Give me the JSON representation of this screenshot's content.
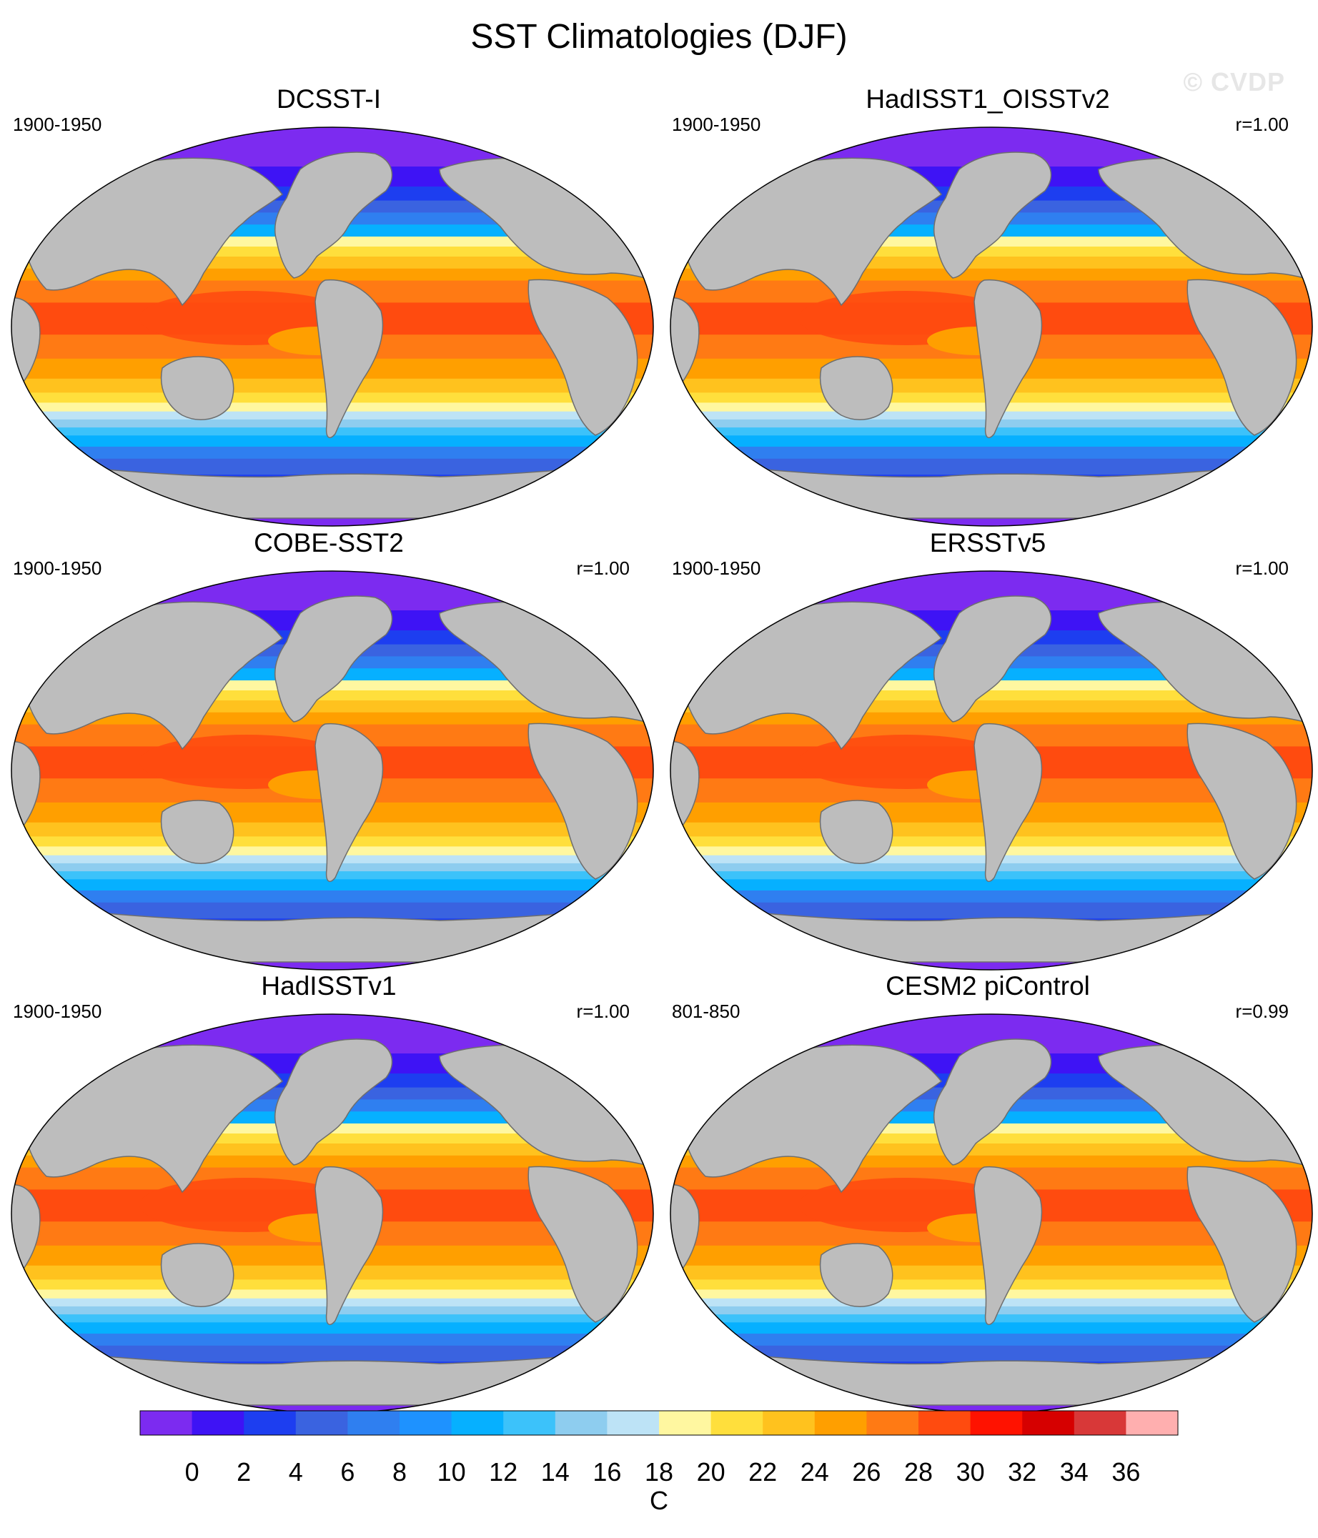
{
  "figure": {
    "title": "SST Climatologies (DJF)",
    "watermark": "© CVDP"
  },
  "colors": {
    "land": "#bdbdbd",
    "coast": "#6e6e6e",
    "missing": "#ffffff"
  },
  "panels": [
    {
      "title": "DCSST-I",
      "period": "1900-1950",
      "corr": ""
    },
    {
      "title": "HadISST1_OISSTv2",
      "period": "1900-1950",
      "corr": "r=1.00"
    },
    {
      "title": "COBE-SST2",
      "period": "1900-1950",
      "corr": "r=1.00"
    },
    {
      "title": "ERSSTv5",
      "period": "1900-1950",
      "corr": "r=1.00"
    },
    {
      "title": "HadISSTv1",
      "period": "1900-1950",
      "corr": "r=1.00"
    },
    {
      "title": "CESM2 piControl",
      "period": "801-850",
      "corr": "r=0.99"
    }
  ],
  "colorbar": {
    "units": "C",
    "tick_labels": [
      "0",
      "2",
      "4",
      "6",
      "8",
      "10",
      "12",
      "14",
      "16",
      "18",
      "20",
      "22",
      "24",
      "26",
      "28",
      "30",
      "32",
      "34",
      "36"
    ],
    "colors": [
      "#7c2bf0",
      "#3e13f5",
      "#1d3ef0",
      "#3a63e0",
      "#2f7ff0",
      "#1e92ff",
      "#06b0ff",
      "#3cc2fa",
      "#8ecdef",
      "#bde3f6",
      "#fff7a0",
      "#ffdf3c",
      "#ffc21e",
      "#ff9f00",
      "#ff7a14",
      "#ff4b0f",
      "#ff1200",
      "#d60000",
      "#d83838",
      "#ffafaf"
    ]
  }
}
